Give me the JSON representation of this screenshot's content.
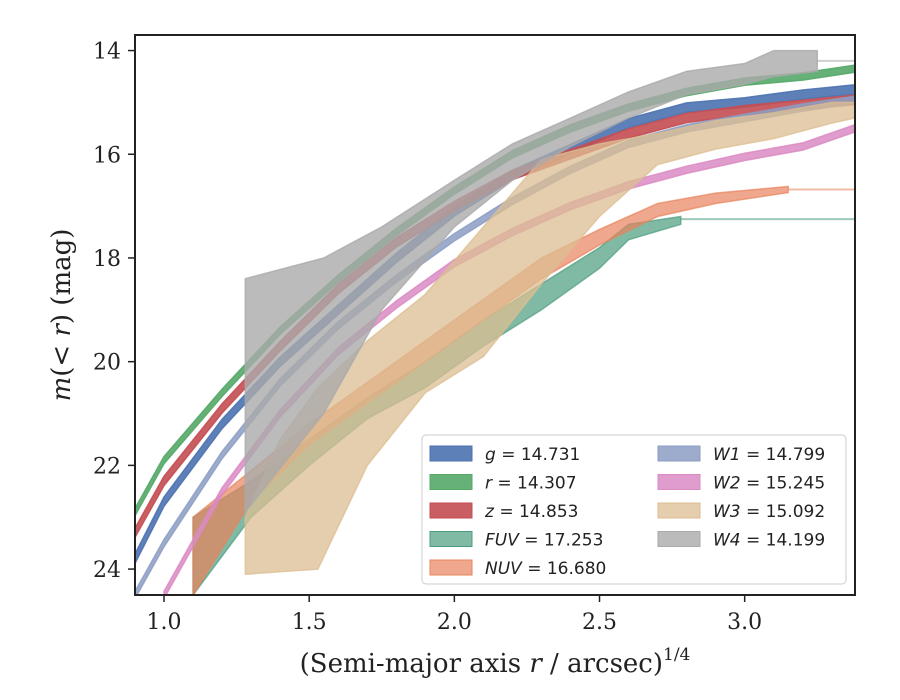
{
  "chart_data": {
    "type": "line",
    "xlabel": "(Semi-major axis r / arcsec)^1/4",
    "ylabel": "m(< r) (mag)",
    "xlim": [
      0.9,
      3.38
    ],
    "ylim": [
      24.5,
      13.7
    ],
    "y_inverted": true,
    "grid": false,
    "legend_position": "lower-right",
    "xticks": [
      1.0,
      1.5,
      2.0,
      2.5,
      3.0
    ],
    "xtick_labels": [
      "1.0",
      "1.5",
      "2.0",
      "2.5",
      "3.0"
    ],
    "yticks": [
      14,
      16,
      18,
      20,
      22,
      24
    ],
    "ytick_labels": [
      "14",
      "16",
      "18",
      "20",
      "22",
      "24"
    ],
    "series": [
      {
        "name": "g",
        "legend_label": "g = 14.731",
        "total_mag": 14.731,
        "color": "#4c72b0",
        "x": [
          0.9,
          1.0,
          1.2,
          1.4,
          1.6,
          1.8,
          2.0,
          2.2,
          2.4,
          2.6,
          2.8,
          3.0,
          3.2,
          3.38
        ],
        "y": [
          23.8,
          22.7,
          21.2,
          20.0,
          19.0,
          18.0,
          17.1,
          16.4,
          15.9,
          15.4,
          15.1,
          15.0,
          14.85,
          14.75
        ],
        "band": 0.09,
        "opacity": 0.9
      },
      {
        "name": "r",
        "legend_label": "r = 14.307",
        "total_mag": 14.307,
        "color": "#55a868",
        "x": [
          0.9,
          1.0,
          1.2,
          1.4,
          1.6,
          1.8,
          2.0,
          2.2,
          2.4,
          2.6,
          2.8,
          3.0,
          3.2,
          3.38
        ],
        "y": [
          22.9,
          21.9,
          20.6,
          19.4,
          18.4,
          17.5,
          16.7,
          16.0,
          15.5,
          15.1,
          14.8,
          14.6,
          14.5,
          14.35
        ],
        "band": 0.07,
        "opacity": 0.9
      },
      {
        "name": "z",
        "legend_label": "z = 14.853",
        "total_mag": 14.853,
        "color": "#c44e52",
        "x": [
          0.9,
          1.0,
          1.2,
          1.4,
          1.6,
          1.8,
          2.0,
          2.2,
          2.4,
          2.6,
          2.8,
          3.0,
          3.2,
          3.38
        ],
        "y": [
          23.3,
          22.3,
          20.9,
          19.7,
          18.6,
          17.7,
          17.0,
          16.4,
          16.0,
          15.6,
          15.3,
          15.15,
          15.05,
          14.95
        ],
        "band": 0.09,
        "opacity": 0.9
      },
      {
        "name": "FUV",
        "legend_label": "FUV = 17.253",
        "total_mag": 17.253,
        "color": "#4c9d7e",
        "x": [
          1.1,
          1.3,
          1.5,
          1.7,
          1.9,
          2.1,
          2.3,
          2.5,
          2.6,
          2.78
        ],
        "y": [
          23.3,
          22.6,
          21.7,
          20.9,
          20.2,
          19.4,
          18.7,
          18.0,
          17.5,
          17.25
        ],
        "band_upper": [
          23.0,
          22.3,
          21.5,
          20.7,
          20.0,
          19.2,
          18.5,
          17.8,
          17.35,
          17.2
        ],
        "band_lower": [
          24.5,
          23.0,
          22.0,
          21.1,
          20.5,
          19.7,
          19.0,
          18.2,
          17.65,
          17.35
        ],
        "extension_y": 17.25,
        "opacity": 0.7
      },
      {
        "name": "NUV",
        "legend_label": "NUV = 16.680",
        "total_mag": 16.68,
        "color": "#e8835c",
        "x": [
          1.1,
          1.3,
          1.5,
          1.7,
          1.9,
          2.1,
          2.3,
          2.5,
          2.7,
          2.9,
          3.15
        ],
        "y": [
          24.0,
          22.4,
          21.4,
          20.6,
          19.8,
          19.0,
          18.2,
          17.6,
          17.1,
          16.85,
          16.68
        ],
        "band_upper": [
          23.0,
          22.1,
          21.2,
          20.4,
          19.6,
          18.8,
          18.0,
          17.45,
          16.95,
          16.75,
          16.62
        ],
        "band_lower": [
          24.5,
          22.7,
          21.6,
          20.8,
          20.0,
          19.2,
          18.4,
          17.75,
          17.2,
          16.95,
          16.74
        ],
        "extension_y": 16.68,
        "opacity": 0.7
      },
      {
        "name": "W1",
        "legend_label": "W1 = 14.799",
        "total_mag": 14.799,
        "color": "#8c9dc3",
        "x": [
          0.9,
          1.0,
          1.2,
          1.4,
          1.6,
          1.8,
          2.0,
          2.2,
          2.4,
          2.6,
          2.8,
          3.0,
          3.2,
          3.38
        ],
        "y": [
          24.5,
          23.5,
          21.8,
          20.4,
          19.3,
          18.4,
          17.6,
          16.9,
          16.3,
          15.8,
          15.5,
          15.3,
          15.1,
          14.95
        ],
        "band": 0.07,
        "opacity": 0.85
      },
      {
        "name": "W2",
        "legend_label": "W2 = 15.245",
        "total_mag": 15.245,
        "color": "#da8bc3",
        "x": [
          1.0,
          1.2,
          1.4,
          1.6,
          1.8,
          2.0,
          2.2,
          2.4,
          2.6,
          2.8,
          3.0,
          3.2,
          3.38
        ],
        "y": [
          24.5,
          22.5,
          21.0,
          19.8,
          18.9,
          18.1,
          17.5,
          17.0,
          16.6,
          16.3,
          16.05,
          15.85,
          15.5
        ],
        "band": 0.07,
        "opacity": 0.85
      },
      {
        "name": "W3",
        "legend_label": "W3 = 15.092",
        "total_mag": 15.092,
        "color": "#dcbd91",
        "x": [
          1.28,
          1.4,
          1.53,
          1.7,
          1.9,
          2.1,
          2.3,
          2.5,
          2.7,
          2.9,
          3.1,
          3.3,
          3.38
        ],
        "y": [
          23.0,
          21.0,
          20.5,
          20.0,
          19.6,
          18.8,
          17.6,
          16.6,
          16.0,
          15.65,
          15.45,
          15.25,
          15.15
        ],
        "band_upper": [
          23.0,
          21.5,
          20.5,
          19.6,
          18.7,
          17.4,
          16.1,
          15.8,
          15.6,
          15.35,
          15.2,
          15.0,
          15.0
        ],
        "band_lower": [
          24.1,
          24.05,
          24.0,
          22.0,
          20.6,
          19.9,
          18.5,
          17.2,
          16.2,
          15.9,
          15.7,
          15.4,
          15.3
        ],
        "extension_y": 15.15,
        "opacity": 0.75
      },
      {
        "name": "W4",
        "legend_label": "W4 = 14.199",
        "total_mag": 14.199,
        "color": "#aaaaaa",
        "x": [
          1.28,
          1.55,
          1.75,
          2.0,
          2.2,
          2.4,
          2.6,
          2.8,
          3.0,
          3.1,
          3.25
        ],
        "y": [
          20.9,
          19.4,
          18.0,
          17.0,
          16.2,
          15.6,
          15.1,
          14.65,
          14.45,
          14.3,
          14.25
        ],
        "band_upper": [
          18.4,
          18.0,
          17.4,
          16.5,
          15.8,
          15.3,
          14.8,
          14.4,
          14.25,
          14.0,
          14.0
        ],
        "band_lower": [
          22.9,
          21.0,
          19.0,
          17.4,
          16.5,
          15.85,
          15.3,
          14.85,
          14.65,
          14.5,
          14.4
        ],
        "extension_y": 14.2,
        "opacity": 0.8
      }
    ],
    "legend_columns": [
      [
        "g",
        "r",
        "z",
        "FUV",
        "NUV"
      ],
      [
        "W1",
        "W2",
        "W3",
        "W4"
      ]
    ]
  }
}
